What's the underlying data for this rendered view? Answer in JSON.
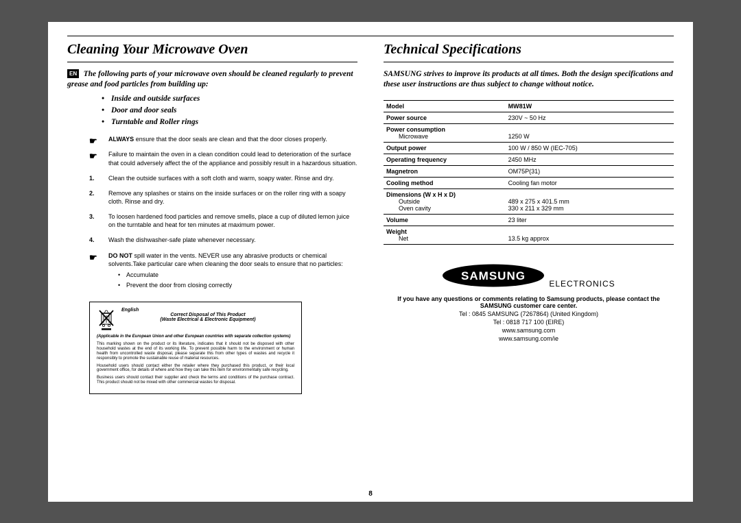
{
  "page_number": "8",
  "lang_tag": "EN",
  "left": {
    "heading": "Cleaning Your Microwave Oven",
    "intro": "The following parts of your microwave oven should be cleaned regularly to prevent grease and food particles from building up:",
    "bullets": [
      "Inside and outside surfaces",
      "Door and door seals",
      "Turntable and Roller rings"
    ],
    "p1a": "ALWAYS",
    "p1b": " ensure that the door seals are clean and that the door closes properly.",
    "p2": "Failure to maintain the oven in a clean condition could lead to deterioration of the surface that could adversely affect the of the appliance and possibly result in a hazardous situation.",
    "n1": "Clean the outside surfaces with a soft cloth and warm, soapy water. Rinse and dry.",
    "n2": "Remove any splashes or stains on the inside surfaces or on the roller ring with a soapy cloth. Rinse and dry.",
    "n3": "To loosen hardened food particles and remove smells, place a cup of diluted lemon juice on the turntable and heat for ten minutes at maximum power.",
    "n4": "Wash the dishwasher-safe plate whenever necessary.",
    "p3a": "DO NOT",
    "p3b": " spill water in the vents. NEVER use any abrasive products or chemical solvents.Take particular care when cleaning the door seals to ensure that no particles:",
    "sub1": "Accumulate",
    "sub2": "Prevent the door from closing correctly",
    "disposal": {
      "lang": "English",
      "t1": "Correct Disposal of This Product",
      "t2": "(Waste Electrical & Electronic Equipment)",
      "app": "(Applicable in the European Union and other European countries with separate collection systems)",
      "b1": "This marking shown on the product or its literature, indicates that it should not be disposed with other household wastes at the end of its working life. To prevent possible harm to the environment or human health from uncontrolled waste disposal, please separate this from other types of wastes and recycle it responsibly to promote the sustainable reuse of material resources.",
      "b2": "Household users should contact either the retailer where they purchased this product, or their local government office, for details of where and how they can take this item for environmentally safe recycling.",
      "b3": "Business users should contact their supplier and check the terms and conditions of the purchase contract. This product should not be mixed with other commercial wastes for disposal."
    }
  },
  "right": {
    "heading": "Technical Specifications",
    "intro": "SAMSUNG strives to improve its products at all times. Both the design specifications and these user instructions are thus subject to change without notice.",
    "table": [
      {
        "k": "Model",
        "v": "MW81W",
        "kb": true,
        "vb": true
      },
      {
        "k": "Power source",
        "v": "230V ~ 50 Hz",
        "kb": true
      },
      {
        "k": "Power consumption",
        "sub": "Microwave",
        "v": "1250 W",
        "kb": true,
        "hassub": true
      },
      {
        "k": "Output power",
        "v": "100 W / 850 W (IEC-705)",
        "kb": true
      },
      {
        "k": "Operating frequency",
        "v": "2450 MHz",
        "kb": true
      },
      {
        "k": "Magnetron",
        "v": "OM75P(31)",
        "kb": true
      },
      {
        "k": "Cooling method",
        "v": "Cooling fan motor",
        "kb": true
      },
      {
        "k": "Dimensions (W x H x D)",
        "sub": "Outside",
        "sub2": "Oven cavity",
        "v": "489 x 275 x 401.5 mm",
        "v2": "330 x 211 x 329 mm",
        "kb": true,
        "hassub2": true
      },
      {
        "k": "Volume",
        "v": "23 liter",
        "kb": true
      },
      {
        "k": "Weight",
        "sub": "Net",
        "v": "13.5 kg approx",
        "kb": true,
        "hassub": true
      }
    ],
    "brand": "SAMSUNG",
    "brand_sub": "ELECTRONICS",
    "contact1": "If you have any questions or comments relating to Samsung products, please contact the SAMSUNG customer care center.",
    "tel1": "Tel : 0845 SAMSUNG (7267864)  (United Kingdom)",
    "tel2": "Tel : 0818 717 100 (EIRE)",
    "url1": "www.samsung.com",
    "url2": "www.samsung.com/ie"
  },
  "colors": {
    "bg": "#525252",
    "page": "#ffffff",
    "ink": "#000000"
  }
}
